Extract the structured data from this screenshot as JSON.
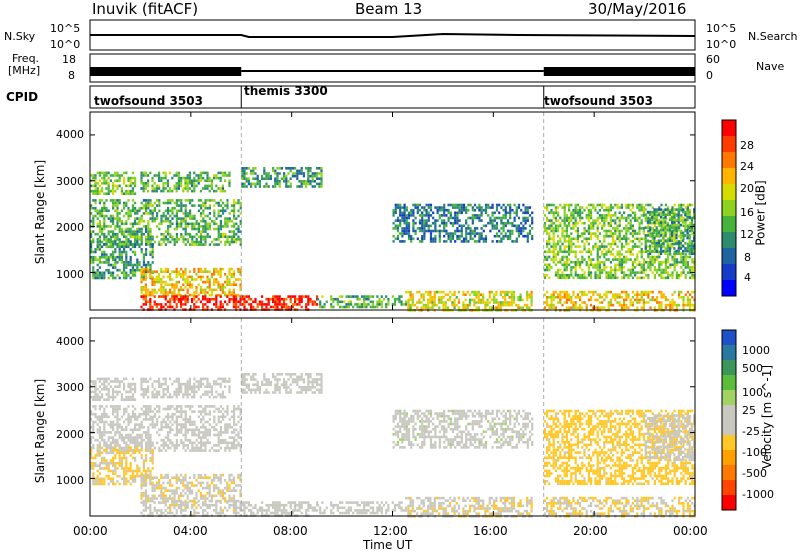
{
  "header": {
    "station": "Inuvik (fitACF)",
    "beam": "Beam 13",
    "date": "30/May/2016"
  },
  "panels": {
    "nsky_label": "N.Sky",
    "nsky_ticks": [
      "10^5",
      "10^0"
    ],
    "nsearch_label": "N.Search",
    "nsearch_ticks": [
      "10^5",
      "10^0"
    ],
    "freq_label_1": "Freq.",
    "freq_label_2": "[MHz]",
    "freq_ticks": [
      "18",
      "8"
    ],
    "nave_label": "Nave",
    "nave_ticks": [
      "60",
      "0"
    ],
    "cpid_label": "CPID",
    "cpid_modes": [
      {
        "name": "twofsound 3503",
        "start_hour": 0
      },
      {
        "name": "themis 3300",
        "start_hour": 6
      },
      {
        "name": "twofsound 3503",
        "start_hour": 18
      }
    ]
  },
  "axes": {
    "ylabel": "Slant Range [km]",
    "xlabel": "Time UT",
    "yticks": [
      "4000",
      "3000",
      "2000",
      "1000"
    ],
    "xticks": [
      "00:00",
      "04:00",
      "08:00",
      "12:00",
      "16:00",
      "20:00",
      "00:00"
    ]
  },
  "power_colorbar": {
    "label": "Power [dB]",
    "ticks": [
      "28",
      "24",
      "20",
      "16",
      "12",
      "8",
      "4"
    ],
    "colors": [
      "#ff0000",
      "#ff3c00",
      "#ff7800",
      "#ffb400",
      "#d7dc00",
      "#8cd21e",
      "#46b43c",
      "#2d8c6e",
      "#1e64a0",
      "#143cc8",
      "#0000ff"
    ]
  },
  "velocity_colorbar": {
    "label": "Velocity [m s^-1]",
    "ticks": [
      "1000",
      "500",
      "100",
      "25",
      "-25",
      "-100",
      "-500",
      "-1000"
    ],
    "colors": [
      "#1e50c8",
      "#2878a0",
      "#3c965a",
      "#5abe3c",
      "#a0d264",
      "#c8c8c0",
      "#c8c8c0",
      "#ffc828",
      "#ffa000",
      "#ff7800",
      "#ff4600",
      "#ff0000"
    ]
  },
  "chart_data": {
    "type": "heatmap",
    "title": "Inuvik (fitACF)",
    "xlabel": "Time UT",
    "ylabel": "Slant Range [km]",
    "xlim_hours": [
      0,
      24
    ],
    "ylim_km": [
      180,
      4500
    ],
    "mode_boundaries_hours": [
      6,
      18
    ],
    "power_scale_db": [
      0,
      30
    ],
    "velocity_scale_ms": [
      -1000,
      1000
    ],
    "echo_regions": [
      {
        "t0": 0.0,
        "t1": 1.8,
        "r0": 2700,
        "r1": 3200,
        "power": 14,
        "velocity": -20
      },
      {
        "t0": 2.0,
        "t1": 5.5,
        "r0": 2800,
        "r1": 3200,
        "power": 12,
        "velocity": 10
      },
      {
        "t0": 0.0,
        "t1": 6.0,
        "r0": 1600,
        "r1": 2600,
        "power": 12,
        "velocity": -60
      },
      {
        "t0": 0.0,
        "t1": 2.5,
        "r0": 900,
        "r1": 1700,
        "power": 10,
        "velocity": -200
      },
      {
        "t0": 2.0,
        "t1": 6.0,
        "r0": 500,
        "r1": 1100,
        "power": 20,
        "velocity": -150
      },
      {
        "t0": 2.0,
        "t1": 6.0,
        "r0": 200,
        "r1": 500,
        "power": 29,
        "velocity": -120
      },
      {
        "t0": 6.0,
        "t1": 9.0,
        "r0": 200,
        "r1": 500,
        "power": 29,
        "velocity": 40
      },
      {
        "t0": 6.0,
        "t1": 9.2,
        "r0": 2900,
        "r1": 3300,
        "power": 10,
        "velocity": 5
      },
      {
        "t0": 9.0,
        "t1": 12.5,
        "r0": 250,
        "r1": 500,
        "power": 12,
        "velocity": 60
      },
      {
        "t0": 12.0,
        "t1": 17.5,
        "r0": 1700,
        "r1": 2500,
        "power": 8,
        "velocity": 120
      },
      {
        "t0": 12.5,
        "t1": 17.5,
        "r0": 200,
        "r1": 600,
        "power": 18,
        "velocity": -150
      },
      {
        "t0": 18.0,
        "t1": 24.0,
        "r0": 200,
        "r1": 600,
        "power": 20,
        "velocity": -180
      },
      {
        "t0": 18.0,
        "t1": 24.0,
        "r0": 900,
        "r1": 2500,
        "power": 14,
        "velocity": -250
      },
      {
        "t0": 22.0,
        "t1": 24.0,
        "r0": 1400,
        "r1": 2400,
        "power": 10,
        "velocity": 15
      }
    ]
  }
}
